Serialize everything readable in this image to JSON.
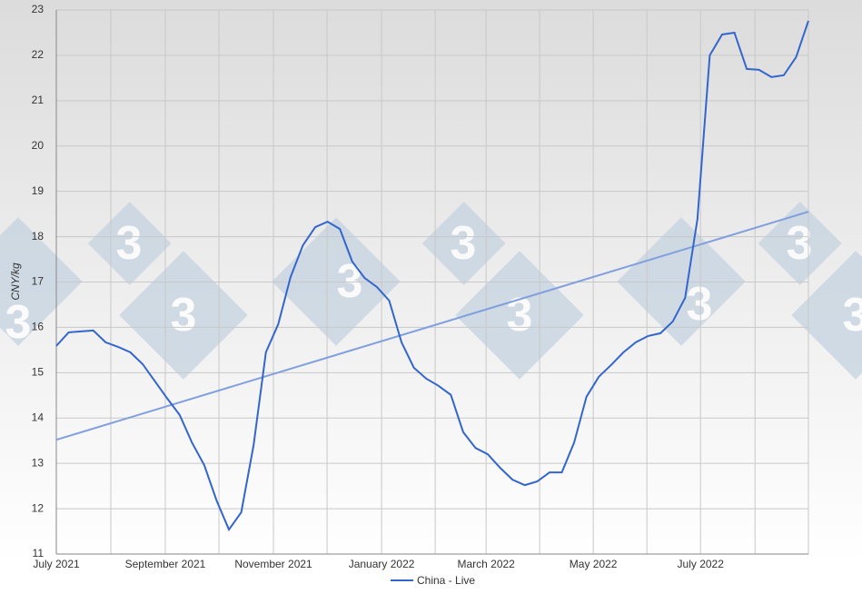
{
  "chart_data": {
    "type": "line",
    "y_label": "CNY/kg",
    "ylim": [
      11,
      23
    ],
    "yticks": [
      11,
      12,
      13,
      14,
      15,
      16,
      17,
      18,
      19,
      20,
      21,
      22,
      23
    ],
    "xlim": [
      0,
      61
    ],
    "xticks": [
      {
        "value": 0,
        "label": "July 2021"
      },
      {
        "value": 4.42,
        "label": null
      },
      {
        "value": 8.84,
        "label": "September 2021"
      },
      {
        "value": 13.19,
        "label": null
      },
      {
        "value": 17.61,
        "label": "November 2021"
      },
      {
        "value": 21.96,
        "label": null
      },
      {
        "value": 26.38,
        "label": "January 2022"
      },
      {
        "value": 30.73,
        "label": null
      },
      {
        "value": 34.86,
        "label": "March 2022"
      },
      {
        "value": 39.2,
        "label": null
      },
      {
        "value": 43.55,
        "label": "May 2022"
      },
      {
        "value": 47.9,
        "label": null
      },
      {
        "value": 52.25,
        "label": "July 2022"
      },
      {
        "value": 56.67,
        "label": null
      },
      {
        "value": 61,
        "label": null
      }
    ],
    "grid": true,
    "legend": "bottom",
    "series": [
      {
        "name": "China - Live",
        "color": "#3366cc",
        "values": [
          15.59,
          15.89,
          15.91,
          15.93,
          15.67,
          15.57,
          15.45,
          15.19,
          14.81,
          14.43,
          14.07,
          13.46,
          12.96,
          12.18,
          11.54,
          11.92,
          13.4,
          15.45,
          16.07,
          17.11,
          17.81,
          18.21,
          18.33,
          18.17,
          17.45,
          17.09,
          16.89,
          16.59,
          15.67,
          15.11,
          14.87,
          14.71,
          14.51,
          13.69,
          13.34,
          13.2,
          12.9,
          12.64,
          12.52,
          12.6,
          12.8,
          12.8,
          13.46,
          14.47,
          14.91,
          15.17,
          15.45,
          15.67,
          15.81,
          15.87,
          16.13,
          16.65,
          18.39,
          22.0,
          22.46,
          22.5,
          21.7,
          21.68,
          21.52,
          21.56,
          21.96,
          22.76
        ]
      }
    ],
    "trendline": {
      "color": "#7f9fdf",
      "x": [
        0,
        61
      ],
      "values": [
        13.52,
        18.55
      ]
    }
  }
}
